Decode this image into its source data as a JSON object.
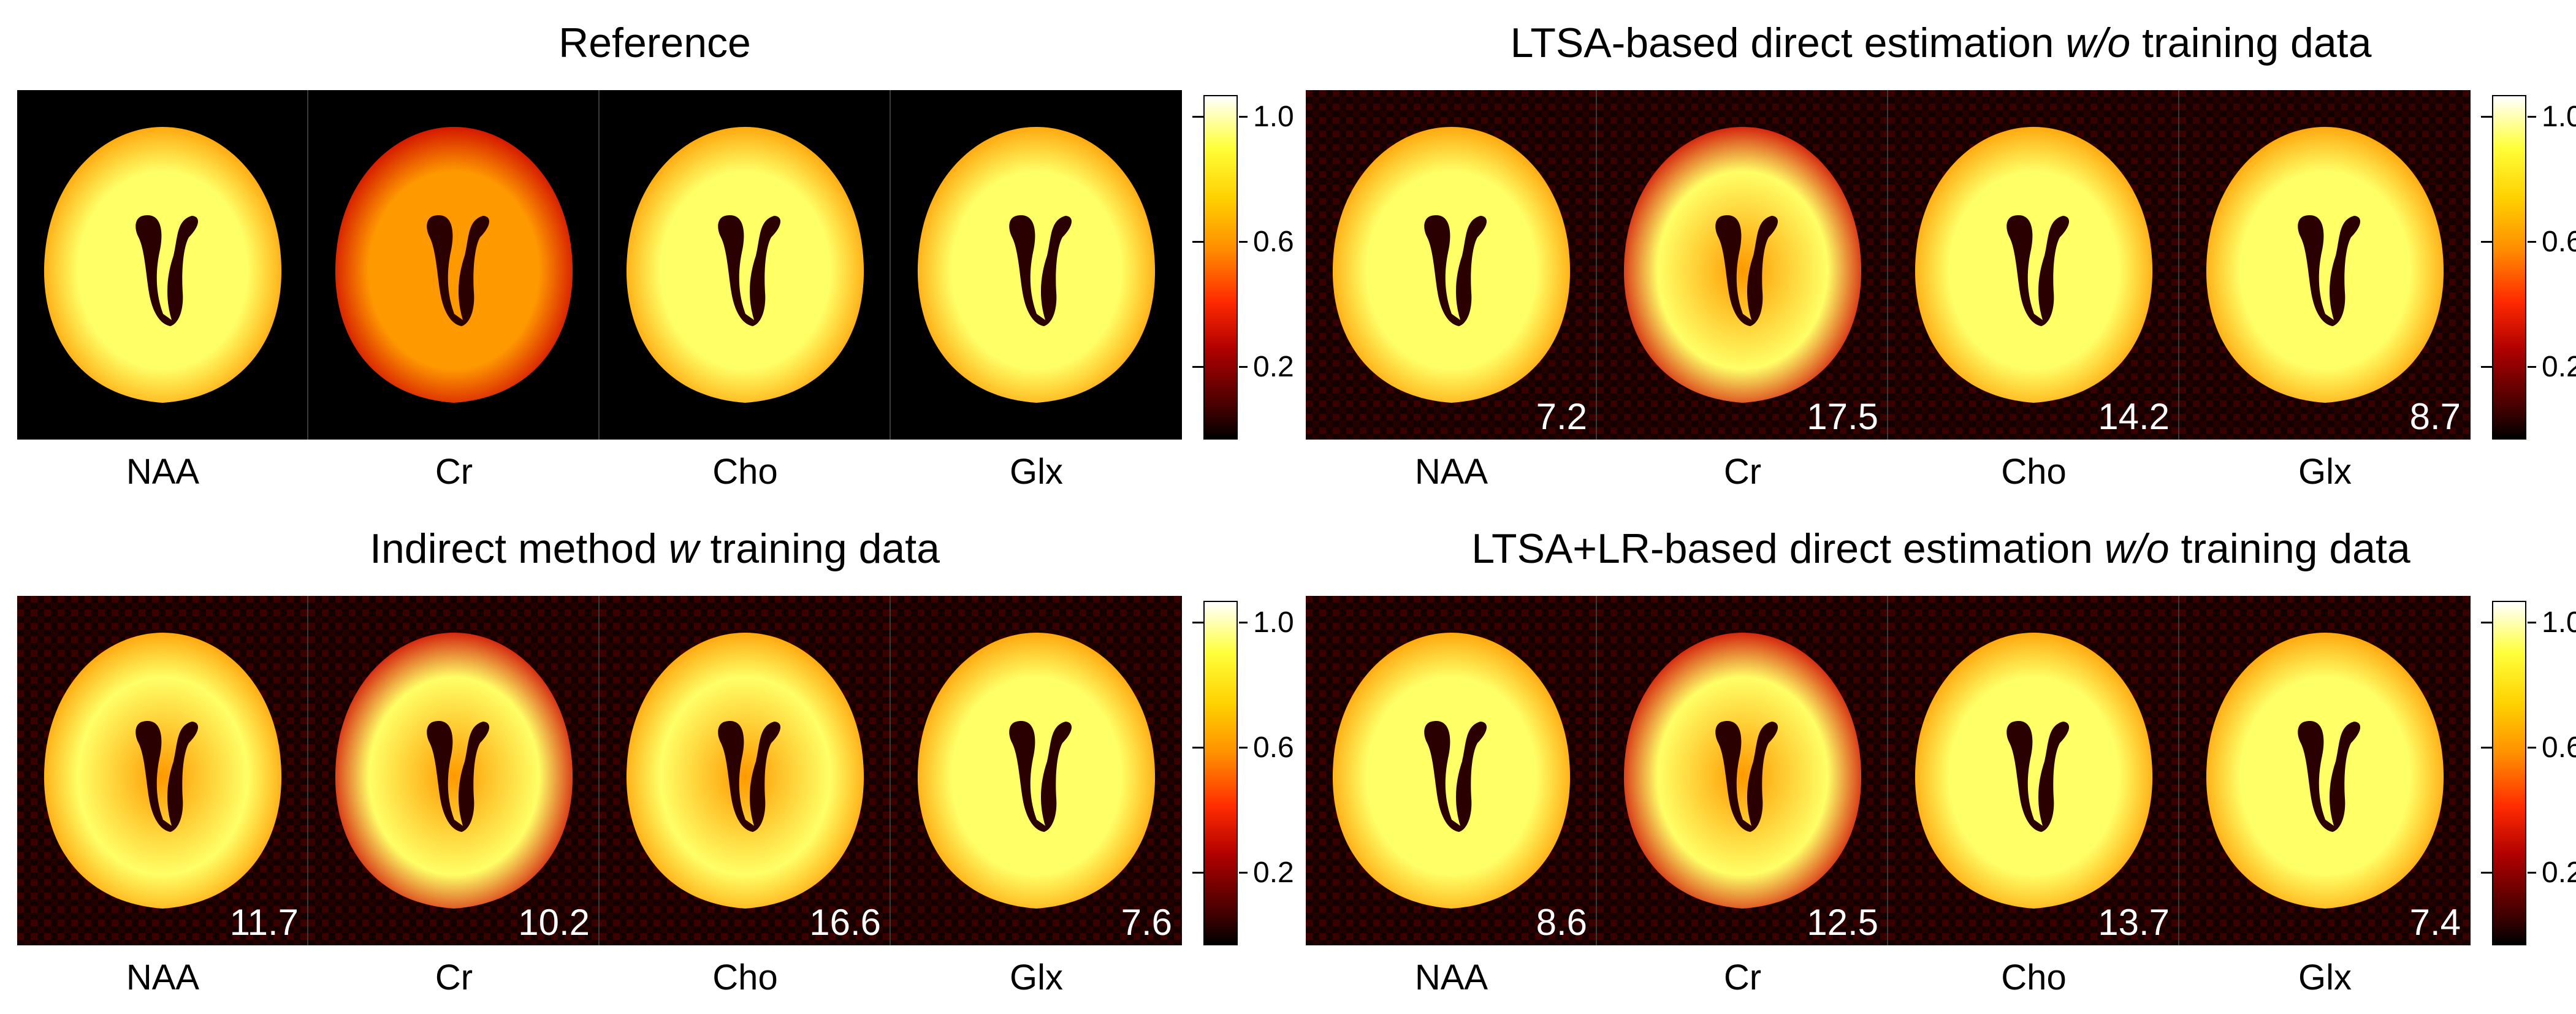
{
  "colors": {
    "map_high": "#ffff66",
    "map_mid": "#ff9900",
    "map_low": "#cc0000",
    "background": "#000000",
    "noise": "#3a0000"
  },
  "colorbar": {
    "ticks": [
      "1.0",
      "0.6",
      "0.2"
    ],
    "tick_values": [
      1.0,
      0.6,
      0.2
    ],
    "max": 1.1,
    "min": 0.0
  },
  "metabolites": [
    "NAA",
    "Cr",
    "Cho",
    "Glx"
  ],
  "panels": [
    {
      "title": "Reference",
      "title_italic": "",
      "title_after": "",
      "noise": false,
      "errors": [
        "",
        "",
        "",
        ""
      ],
      "intensity": [
        0.85,
        0.55,
        0.95,
        0.85
      ]
    },
    {
      "title": "LTSA-based direct estimation ",
      "title_italic": "w/o",
      "title_after": " training data",
      "noise": true,
      "errors": [
        "7.2",
        "17.5",
        "14.2",
        "8.7"
      ],
      "intensity": [
        0.9,
        0.7,
        0.9,
        0.95
      ]
    },
    {
      "title": "Indirect method ",
      "title_italic": "w",
      "title_after": " training data",
      "noise": true,
      "errors": [
        "11.7",
        "10.2",
        "16.6",
        "7.6"
      ],
      "intensity": [
        0.8,
        0.65,
        0.75,
        0.85
      ]
    },
    {
      "title": "LTSA+LR-based direct estimation ",
      "title_italic": "w/o",
      "title_after": " training data",
      "noise": true,
      "errors": [
        "8.6",
        "12.5",
        "13.7",
        "7.4"
      ],
      "intensity": [
        0.85,
        0.65,
        0.9,
        0.9
      ]
    }
  ]
}
